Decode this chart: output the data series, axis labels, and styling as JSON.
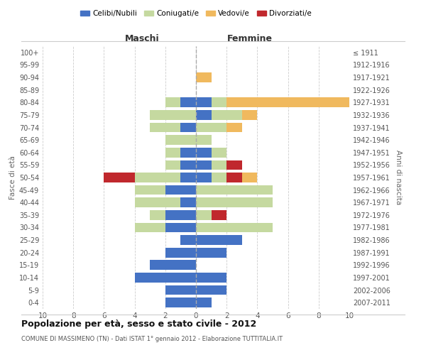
{
  "age_groups": [
    "0-4",
    "5-9",
    "10-14",
    "15-19",
    "20-24",
    "25-29",
    "30-34",
    "35-39",
    "40-44",
    "45-49",
    "50-54",
    "55-59",
    "60-64",
    "65-69",
    "70-74",
    "75-79",
    "80-84",
    "85-89",
    "90-94",
    "95-99",
    "100+"
  ],
  "birth_years": [
    "2007-2011",
    "2002-2006",
    "1997-2001",
    "1992-1996",
    "1987-1991",
    "1982-1986",
    "1977-1981",
    "1972-1976",
    "1967-1971",
    "1962-1966",
    "1957-1961",
    "1952-1956",
    "1947-1951",
    "1942-1946",
    "1937-1941",
    "1932-1936",
    "1927-1931",
    "1922-1926",
    "1917-1921",
    "1912-1916",
    "≤ 1911"
  ],
  "maschi": {
    "celibi": [
      2,
      2,
      4,
      3,
      2,
      1,
      2,
      2,
      1,
      2,
      1,
      1,
      1,
      0,
      1,
      0,
      1,
      0,
      0,
      0,
      0
    ],
    "coniugati": [
      0,
      0,
      0,
      0,
      0,
      0,
      2,
      1,
      3,
      2,
      3,
      1,
      1,
      2,
      2,
      3,
      1,
      0,
      0,
      0,
      0
    ],
    "vedovi": [
      0,
      0,
      0,
      0,
      0,
      0,
      0,
      0,
      0,
      0,
      0,
      0,
      0,
      0,
      0,
      0,
      0,
      0,
      0,
      0,
      0
    ],
    "divorziati": [
      0,
      0,
      0,
      0,
      0,
      0,
      0,
      0,
      0,
      0,
      2,
      0,
      0,
      0,
      0,
      0,
      0,
      0,
      0,
      0,
      0
    ]
  },
  "femmine": {
    "nubili": [
      1,
      2,
      2,
      0,
      2,
      3,
      0,
      0,
      0,
      0,
      1,
      1,
      1,
      0,
      0,
      1,
      1,
      0,
      0,
      0,
      0
    ],
    "coniugate": [
      0,
      0,
      0,
      0,
      0,
      0,
      5,
      1,
      5,
      5,
      1,
      1,
      1,
      1,
      2,
      2,
      1,
      0,
      0,
      0,
      0
    ],
    "vedove": [
      0,
      0,
      0,
      0,
      0,
      0,
      0,
      0,
      0,
      0,
      1,
      0,
      0,
      0,
      1,
      1,
      8,
      0,
      1,
      0,
      0
    ],
    "divorziate": [
      0,
      0,
      0,
      0,
      0,
      0,
      0,
      1,
      0,
      0,
      1,
      1,
      0,
      0,
      0,
      0,
      0,
      0,
      0,
      0,
      0
    ]
  },
  "color_celibi": "#4472c4",
  "color_coniugati": "#c5d9a0",
  "color_vedovi": "#f0b95e",
  "color_divorziati": "#c0282d",
  "xlim": 10,
  "title": "Popolazione per età, sesso e stato civile - 2012",
  "subtitle": "COMUNE DI MASSIMENO (TN) - Dati ISTAT 1° gennaio 2012 - Elaborazione TUTTITALIA.IT",
  "xlabel_left": "Maschi",
  "xlabel_right": "Femmine",
  "ylabel_left": "Fasce di età",
  "ylabel_right": "Anni di nascita",
  "legend_labels": [
    "Celibi/Nubili",
    "Coniugati/e",
    "Vedovi/e",
    "Divorziati/e"
  ],
  "xtick_vals": [
    -10,
    -8,
    -6,
    -4,
    -2,
    0,
    2,
    4,
    6,
    8,
    10
  ]
}
